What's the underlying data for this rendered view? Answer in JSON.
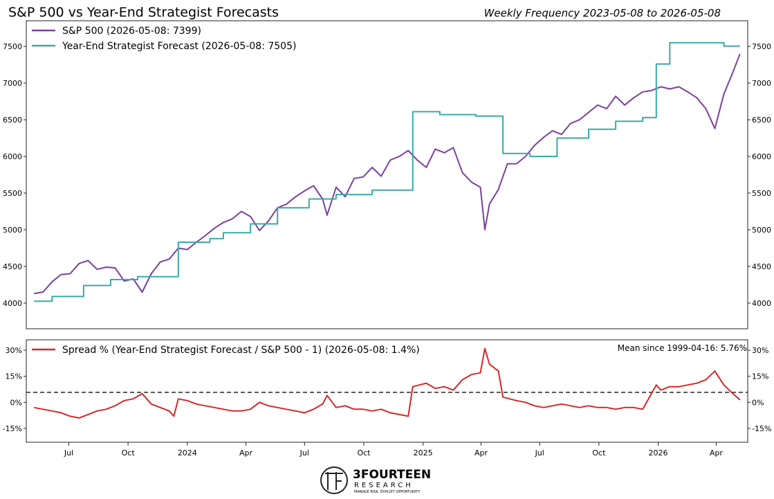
{
  "header": {
    "title": "S&P 500 vs Year-End Strategist Forecasts",
    "subtitle": "Weekly Frequency 2023-05-08 to 2026-05-08"
  },
  "logo": {
    "name_main": "3FOURTEEN",
    "name_sub": "RESEARCH",
    "tagline": "MANAGE RISK. EXPLOIT OPPORTUNITY."
  },
  "chart_data": [
    {
      "type": "line",
      "panel": "top",
      "ylim": [
        3650,
        7850
      ],
      "yticks": [
        4000,
        4500,
        5000,
        5500,
        6000,
        6500,
        7000,
        7500
      ],
      "legend_position": "top-left",
      "grid": false,
      "x_range": [
        "2023-05-08",
        "2026-05-08"
      ],
      "series": [
        {
          "name": "S&P 500 (2026-05-08: 7399)",
          "color": "#7b3fa0",
          "points": [
            [
              "2023-05-08",
              4130
            ],
            [
              "2023-05-22",
              4150
            ],
            [
              "2023-06-05",
              4290
            ],
            [
              "2023-06-19",
              4390
            ],
            [
              "2023-07-03",
              4400
            ],
            [
              "2023-07-17",
              4540
            ],
            [
              "2023-07-31",
              4580
            ],
            [
              "2023-08-14",
              4460
            ],
            [
              "2023-08-28",
              4490
            ],
            [
              "2023-09-11",
              4480
            ],
            [
              "2023-09-25",
              4300
            ],
            [
              "2023-10-09",
              4330
            ],
            [
              "2023-10-23",
              4150
            ],
            [
              "2023-11-06",
              4400
            ],
            [
              "2023-11-20",
              4560
            ],
            [
              "2023-12-04",
              4600
            ],
            [
              "2023-12-18",
              4750
            ],
            [
              "2024-01-01",
              4730
            ],
            [
              "2024-01-15",
              4830
            ],
            [
              "2024-01-29",
              4920
            ],
            [
              "2024-02-12",
              5020
            ],
            [
              "2024-02-26",
              5100
            ],
            [
              "2024-03-11",
              5150
            ],
            [
              "2024-03-25",
              5250
            ],
            [
              "2024-04-08",
              5180
            ],
            [
              "2024-04-22",
              4990
            ],
            [
              "2024-05-06",
              5120
            ],
            [
              "2024-05-20",
              5300
            ],
            [
              "2024-06-03",
              5350
            ],
            [
              "2024-06-17",
              5450
            ],
            [
              "2024-07-01",
              5530
            ],
            [
              "2024-07-15",
              5600
            ],
            [
              "2024-07-29",
              5420
            ],
            [
              "2024-08-05",
              5200
            ],
            [
              "2024-08-19",
              5580
            ],
            [
              "2024-09-02",
              5450
            ],
            [
              "2024-09-16",
              5700
            ],
            [
              "2024-09-30",
              5720
            ],
            [
              "2024-10-14",
              5850
            ],
            [
              "2024-10-28",
              5730
            ],
            [
              "2024-11-11",
              5950
            ],
            [
              "2024-11-25",
              6000
            ],
            [
              "2024-12-09",
              6080
            ],
            [
              "2024-12-23",
              5950
            ],
            [
              "2025-01-06",
              5850
            ],
            [
              "2025-01-20",
              6100
            ],
            [
              "2025-02-03",
              6050
            ],
            [
              "2025-02-17",
              6120
            ],
            [
              "2025-03-03",
              5780
            ],
            [
              "2025-03-17",
              5650
            ],
            [
              "2025-03-31",
              5580
            ],
            [
              "2025-04-07",
              5000
            ],
            [
              "2025-04-14",
              5350
            ],
            [
              "2025-04-28",
              5550
            ],
            [
              "2025-05-12",
              5900
            ],
            [
              "2025-05-26",
              5900
            ],
            [
              "2025-06-09",
              6000
            ],
            [
              "2025-06-23",
              6150
            ],
            [
              "2025-07-07",
              6260
            ],
            [
              "2025-07-21",
              6350
            ],
            [
              "2025-08-04",
              6300
            ],
            [
              "2025-08-18",
              6450
            ],
            [
              "2025-09-01",
              6500
            ],
            [
              "2025-09-15",
              6600
            ],
            [
              "2025-09-29",
              6700
            ],
            [
              "2025-10-13",
              6650
            ],
            [
              "2025-10-27",
              6820
            ],
            [
              "2025-11-10",
              6700
            ],
            [
              "2025-11-24",
              6800
            ],
            [
              "2025-12-08",
              6880
            ],
            [
              "2025-12-22",
              6900
            ],
            [
              "2026-01-05",
              6950
            ],
            [
              "2026-01-19",
              6920
            ],
            [
              "2026-02-02",
              6950
            ],
            [
              "2026-02-16",
              6880
            ],
            [
              "2026-03-02",
              6800
            ],
            [
              "2026-03-16",
              6650
            ],
            [
              "2026-03-30",
              6380
            ],
            [
              "2026-04-13",
              6850
            ],
            [
              "2026-04-27",
              7150
            ],
            [
              "2026-05-08",
              7399
            ]
          ]
        },
        {
          "name": "Year-End Strategist Forecast (2026-05-08: 7505)",
          "color": "#3aa9a6",
          "points": [
            [
              "2023-05-08",
              4025
            ],
            [
              "2023-06-05",
              4025
            ],
            [
              "2023-06-05",
              4090
            ],
            [
              "2023-07-24",
              4090
            ],
            [
              "2023-07-24",
              4240
            ],
            [
              "2023-09-04",
              4240
            ],
            [
              "2023-09-04",
              4320
            ],
            [
              "2023-10-16",
              4320
            ],
            [
              "2023-10-16",
              4360
            ],
            [
              "2023-12-18",
              4360
            ],
            [
              "2023-12-18",
              4830
            ],
            [
              "2024-02-05",
              4830
            ],
            [
              "2024-02-05",
              4880
            ],
            [
              "2024-02-26",
              4880
            ],
            [
              "2024-02-26",
              4960
            ],
            [
              "2024-04-08",
              4960
            ],
            [
              "2024-04-08",
              5080
            ],
            [
              "2024-05-20",
              5080
            ],
            [
              "2024-05-20",
              5300
            ],
            [
              "2024-07-08",
              5300
            ],
            [
              "2024-07-08",
              5420
            ],
            [
              "2024-08-19",
              5420
            ],
            [
              "2024-08-19",
              5480
            ],
            [
              "2024-10-14",
              5480
            ],
            [
              "2024-10-14",
              5540
            ],
            [
              "2024-12-16",
              5540
            ],
            [
              "2024-12-16",
              6610
            ],
            [
              "2025-01-27",
              6610
            ],
            [
              "2025-01-27",
              6570
            ],
            [
              "2025-03-24",
              6570
            ],
            [
              "2025-03-24",
              6550
            ],
            [
              "2025-05-05",
              6550
            ],
            [
              "2025-05-05",
              6040
            ],
            [
              "2025-06-16",
              6040
            ],
            [
              "2025-06-16",
              6000
            ],
            [
              "2025-07-28",
              6000
            ],
            [
              "2025-07-28",
              6250
            ],
            [
              "2025-09-15",
              6250
            ],
            [
              "2025-09-15",
              6370
            ],
            [
              "2025-10-27",
              6370
            ],
            [
              "2025-10-27",
              6480
            ],
            [
              "2025-12-08",
              6480
            ],
            [
              "2025-12-08",
              6530
            ],
            [
              "2025-12-29",
              6530
            ],
            [
              "2025-12-29",
              7260
            ],
            [
              "2026-01-19",
              7260
            ],
            [
              "2026-01-19",
              7550
            ],
            [
              "2026-04-13",
              7550
            ],
            [
              "2026-04-13",
              7505
            ],
            [
              "2026-05-08",
              7505
            ]
          ]
        }
      ]
    },
    {
      "type": "line",
      "panel": "bottom",
      "ylim": [
        -23,
        36
      ],
      "yticks": [
        -15,
        0,
        15,
        30
      ],
      "ytick_labels": [
        "-15%",
        "0%",
        "15%",
        "30%"
      ],
      "mean_line": 5.76,
      "annotation": "Mean since 1999-04-16: 5.76%",
      "legend_position": "top-left",
      "grid": false,
      "x_ticks": [
        {
          "date": "2023-07-01",
          "label": "Jul"
        },
        {
          "date": "2023-10-01",
          "label": "Oct"
        },
        {
          "date": "2024-01-01",
          "label": "2024"
        },
        {
          "date": "2024-04-01",
          "label": "Apr"
        },
        {
          "date": "2024-07-01",
          "label": "Jul"
        },
        {
          "date": "2024-10-01",
          "label": "Oct"
        },
        {
          "date": "2025-01-01",
          "label": "2025"
        },
        {
          "date": "2025-04-01",
          "label": "Apr"
        },
        {
          "date": "2025-07-01",
          "label": "Jul"
        },
        {
          "date": "2025-10-01",
          "label": "Oct"
        },
        {
          "date": "2026-01-01",
          "label": "2026"
        },
        {
          "date": "2026-04-01",
          "label": "Apr"
        }
      ],
      "series": [
        {
          "name": "Spread % (Year-End Strategist Forecast / S&P 500 - 1) (2026-05-08: 1.4%)",
          "color": "#d62728",
          "points": [
            [
              "2023-05-08",
              -3
            ],
            [
              "2023-05-22",
              -4
            ],
            [
              "2023-06-05",
              -5
            ],
            [
              "2023-06-19",
              -6
            ],
            [
              "2023-07-03",
              -8
            ],
            [
              "2023-07-17",
              -9
            ],
            [
              "2023-07-31",
              -7
            ],
            [
              "2023-08-14",
              -5
            ],
            [
              "2023-08-28",
              -4
            ],
            [
              "2023-09-11",
              -2
            ],
            [
              "2023-09-25",
              1
            ],
            [
              "2023-10-09",
              2
            ],
            [
              "2023-10-23",
              5
            ],
            [
              "2023-11-06",
              -1
            ],
            [
              "2023-11-20",
              -3
            ],
            [
              "2023-12-04",
              -5
            ],
            [
              "2023-12-11",
              -8
            ],
            [
              "2023-12-18",
              2
            ],
            [
              "2024-01-01",
              1
            ],
            [
              "2024-01-15",
              -1
            ],
            [
              "2024-01-29",
              -2
            ],
            [
              "2024-02-12",
              -3
            ],
            [
              "2024-02-26",
              -4
            ],
            [
              "2024-03-11",
              -5
            ],
            [
              "2024-03-25",
              -5
            ],
            [
              "2024-04-08",
              -4
            ],
            [
              "2024-04-22",
              0
            ],
            [
              "2024-05-06",
              -2
            ],
            [
              "2024-05-20",
              -3
            ],
            [
              "2024-06-03",
              -4
            ],
            [
              "2024-06-17",
              -5
            ],
            [
              "2024-07-01",
              -6
            ],
            [
              "2024-07-15",
              -4
            ],
            [
              "2024-07-29",
              -1
            ],
            [
              "2024-08-05",
              4
            ],
            [
              "2024-08-19",
              -3
            ],
            [
              "2024-09-02",
              -2
            ],
            [
              "2024-09-16",
              -4
            ],
            [
              "2024-09-30",
              -4
            ],
            [
              "2024-10-14",
              -5
            ],
            [
              "2024-10-28",
              -4
            ],
            [
              "2024-11-11",
              -6
            ],
            [
              "2024-11-25",
              -7
            ],
            [
              "2024-12-09",
              -8
            ],
            [
              "2024-12-16",
              9
            ],
            [
              "2025-01-06",
              11
            ],
            [
              "2025-01-20",
              8
            ],
            [
              "2025-02-03",
              9
            ],
            [
              "2025-02-17",
              7
            ],
            [
              "2025-03-03",
              13
            ],
            [
              "2025-03-17",
              16
            ],
            [
              "2025-03-31",
              17
            ],
            [
              "2025-04-07",
              31
            ],
            [
              "2025-04-14",
              22
            ],
            [
              "2025-04-28",
              18
            ],
            [
              "2025-05-05",
              3
            ],
            [
              "2025-05-26",
              1
            ],
            [
              "2025-06-09",
              0
            ],
            [
              "2025-06-23",
              -2
            ],
            [
              "2025-07-07",
              -3
            ],
            [
              "2025-07-21",
              -2
            ],
            [
              "2025-08-04",
              -1
            ],
            [
              "2025-08-18",
              -2
            ],
            [
              "2025-09-01",
              -3
            ],
            [
              "2025-09-15",
              -2
            ],
            [
              "2025-09-29",
              -3
            ],
            [
              "2025-10-13",
              -3
            ],
            [
              "2025-10-27",
              -4
            ],
            [
              "2025-11-10",
              -3
            ],
            [
              "2025-11-24",
              -3
            ],
            [
              "2025-12-08",
              -4
            ],
            [
              "2025-12-29",
              10
            ],
            [
              "2026-01-05",
              7
            ],
            [
              "2026-01-19",
              9
            ],
            [
              "2026-02-02",
              9
            ],
            [
              "2026-02-16",
              10
            ],
            [
              "2026-03-02",
              11
            ],
            [
              "2026-03-16",
              13
            ],
            [
              "2026-03-30",
              18
            ],
            [
              "2026-04-13",
              10
            ],
            [
              "2026-04-27",
              5
            ],
            [
              "2026-05-08",
              1.4
            ]
          ]
        }
      ]
    }
  ]
}
